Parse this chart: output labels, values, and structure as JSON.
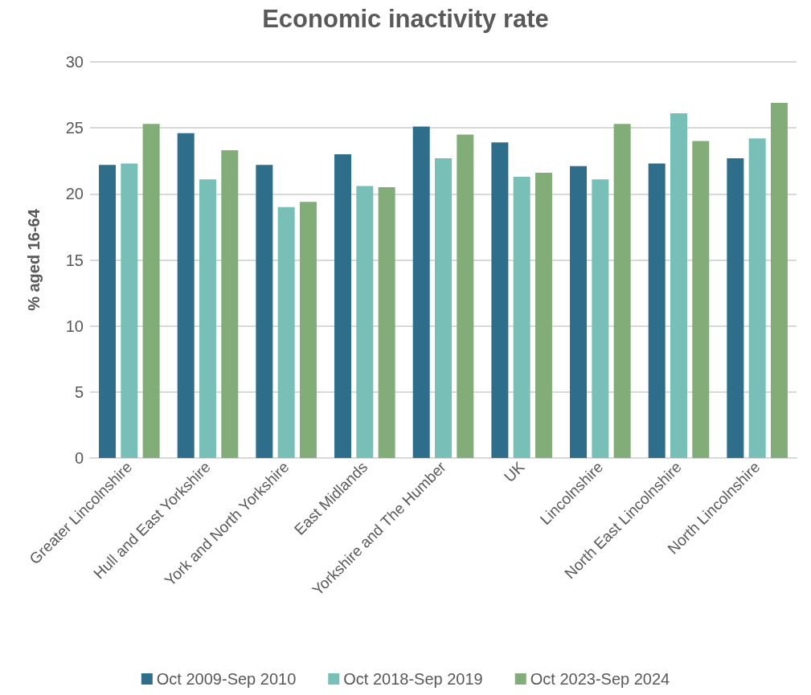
{
  "chart_data": {
    "type": "bar",
    "title": "Economic inactivity rate",
    "ylabel": "% aged 16-64",
    "categories": [
      "Greater Lincolnshire",
      "Hull and East Yorkshire",
      "York and North Yorkshire",
      "East Midlands",
      "Yorkshire and The Humber",
      "UK",
      "Lincolnshire",
      "North East Lincolnshire",
      "North Lincolnshire"
    ],
    "series": [
      {
        "name": "Oct 2009-Sep 2010",
        "color": "#2e6e8a",
        "values": [
          22.2,
          24.6,
          22.2,
          23.0,
          25.1,
          23.9,
          22.1,
          22.3,
          22.7
        ]
      },
      {
        "name": "Oct 2018-Sep 2019",
        "color": "#78bfb8",
        "values": [
          22.3,
          21.1,
          19.0,
          20.6,
          22.7,
          21.3,
          21.1,
          26.1,
          24.2
        ]
      },
      {
        "name": "Oct 2023-Sep 2024",
        "color": "#82ad78",
        "values": [
          25.3,
          23.3,
          19.4,
          20.5,
          24.5,
          21.6,
          25.3,
          24.0,
          26.9
        ]
      }
    ],
    "ylim": [
      0,
      30
    ],
    "yticks": [
      0,
      5,
      10,
      15,
      20,
      25,
      30
    ],
    "grid": "y",
    "legend": "bottom"
  }
}
